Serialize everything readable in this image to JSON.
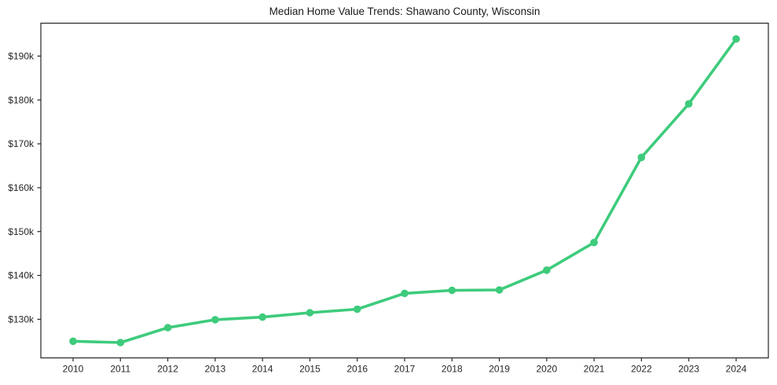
{
  "chart_data": {
    "type": "line",
    "title": "Median Home Value Trends: Shawano County, Wisconsin",
    "xlabel": "",
    "ylabel": "",
    "x": [
      2010,
      2011,
      2012,
      2013,
      2014,
      2015,
      2016,
      2017,
      2018,
      2019,
      2020,
      2021,
      2022,
      2023,
      2024
    ],
    "series": [
      {
        "name": "Median Home Value",
        "values": [
          125000,
          124700,
          128100,
          129900,
          130500,
          131500,
          132300,
          135900,
          136600,
          136700,
          141200,
          147500,
          166900,
          179100,
          193900
        ]
      }
    ],
    "x_tick_labels": [
      "2010",
      "2011",
      "2012",
      "2013",
      "2014",
      "2015",
      "2016",
      "2017",
      "2018",
      "2019",
      "2020",
      "2021",
      "2022",
      "2023",
      "2024"
    ],
    "y_ticks": [
      130000,
      140000,
      150000,
      160000,
      170000,
      180000,
      190000
    ],
    "y_tick_labels": [
      "$130k",
      "$140k",
      "$150k",
      "$160k",
      "$170k",
      "$180k",
      "$190k"
    ],
    "xlim": [
      2009.32,
      2024.68
    ],
    "ylim": [
      121200,
      197500
    ],
    "grid": false,
    "legend_position": "none",
    "line_color": "#3ecb7c",
    "marker": "circle",
    "spine_color": "#262626",
    "background_color": "#ffffff"
  }
}
